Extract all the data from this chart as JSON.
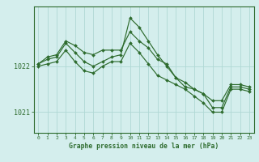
{
  "title": "Graphe pression niveau de la mer (hPa)",
  "bg_color": "#d4eeed",
  "grid_color": "#b0d8d5",
  "line_color": "#2d6b2d",
  "marker_color": "#2d6b2d",
  "xlim": [
    -0.5,
    23.5
  ],
  "ylim": [
    1020.55,
    1023.3
  ],
  "yticks": [
    1021,
    1022
  ],
  "xticks": [
    0,
    1,
    2,
    3,
    4,
    5,
    6,
    7,
    8,
    9,
    10,
    11,
    12,
    13,
    14,
    15,
    16,
    17,
    18,
    19,
    20,
    21,
    22,
    23
  ],
  "series": [
    [
      1022.05,
      1022.2,
      1022.25,
      1022.55,
      1022.45,
      1022.3,
      1022.25,
      1022.35,
      1022.35,
      1022.35,
      1022.75,
      1022.55,
      1022.4,
      1022.15,
      1022.05,
      1021.75,
      1021.55,
      1021.5,
      1021.4,
      1021.25,
      1021.25,
      1021.6,
      1021.6,
      1021.55
    ],
    [
      1022.05,
      1022.15,
      1022.2,
      1022.5,
      1022.3,
      1022.1,
      1022.0,
      1022.1,
      1022.2,
      1022.25,
      1023.05,
      1022.85,
      1022.55,
      1022.25,
      1022.0,
      1021.75,
      1021.65,
      1021.5,
      1021.4,
      1021.1,
      1021.1,
      1021.55,
      1021.55,
      1021.5
    ],
    [
      1022.0,
      1022.05,
      1022.1,
      1022.35,
      1022.1,
      1021.9,
      1021.85,
      1022.0,
      1022.1,
      1022.1,
      1022.5,
      1022.3,
      1022.05,
      1021.8,
      1021.7,
      1021.6,
      1021.5,
      1021.35,
      1021.2,
      1021.0,
      1021.0,
      1021.5,
      1021.5,
      1021.45
    ]
  ]
}
